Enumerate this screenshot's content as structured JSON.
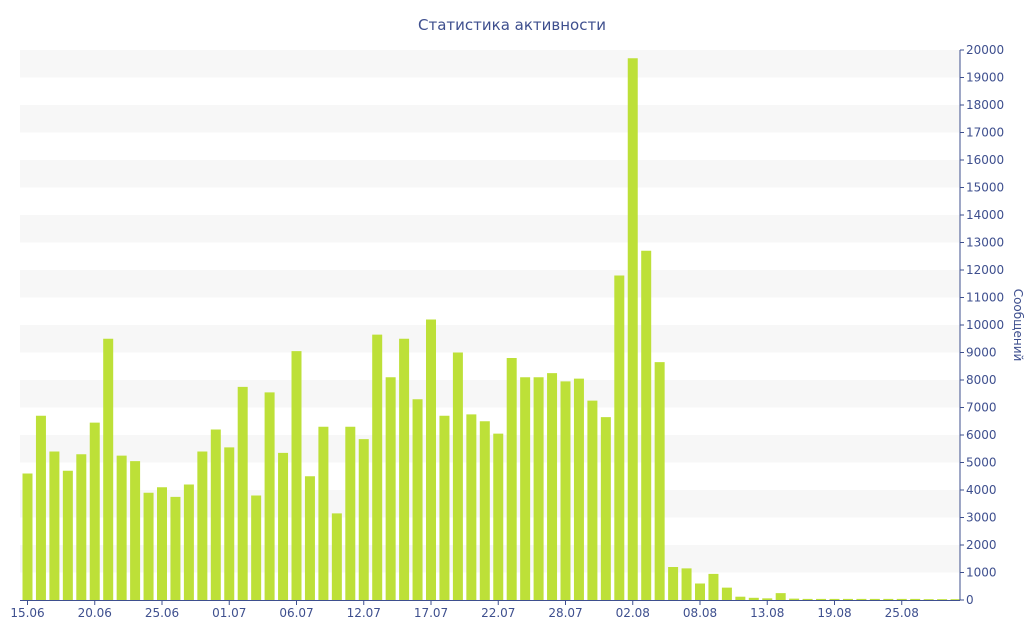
{
  "chart_data": {
    "type": "bar",
    "title": "Статистика активности",
    "xlabel": "",
    "ylabel": "Сообщений",
    "ylim": [
      0,
      20000
    ],
    "yticks": [
      0,
      1000,
      2000,
      3000,
      4000,
      5000,
      6000,
      7000,
      8000,
      9000,
      10000,
      11000,
      12000,
      13000,
      14000,
      15000,
      16000,
      17000,
      18000,
      19000,
      20000
    ],
    "x_tick_labels": [
      "15.06",
      "20.06",
      "25.06",
      "01.07",
      "06.07",
      "12.07",
      "17.07",
      "22.07",
      "28.07",
      "02.08",
      "08.08",
      "13.08",
      "19.08",
      "25.08"
    ],
    "x_tick_indices": [
      0,
      5,
      10,
      15,
      20,
      25,
      30,
      35,
      40,
      45,
      50,
      55,
      60,
      65
    ],
    "values": [
      4600,
      6700,
      5400,
      4700,
      5300,
      6450,
      9500,
      5250,
      5050,
      3900,
      4100,
      3750,
      4200,
      5400,
      6200,
      5550,
      7750,
      3800,
      7550,
      5350,
      9050,
      4500,
      6300,
      3150,
      6300,
      5850,
      9650,
      8100,
      9500,
      7300,
      10200,
      6700,
      9000,
      6750,
      6500,
      6050,
      8800,
      8100,
      8100,
      8250,
      7950,
      8050,
      7250,
      6650,
      11800,
      19700,
      12700,
      8650,
      1200,
      1150,
      600,
      950,
      450,
      120,
      80,
      60,
      250,
      50,
      40,
      40,
      40,
      40,
      40,
      40,
      40,
      40,
      40,
      30,
      30,
      30
    ],
    "colors": {
      "bar": "#bde038",
      "band": "#f7f7f7",
      "text": "#3e4f8e",
      "axis": "#3e4f8e"
    },
    "grid": true,
    "y_axis_position": "right"
  }
}
